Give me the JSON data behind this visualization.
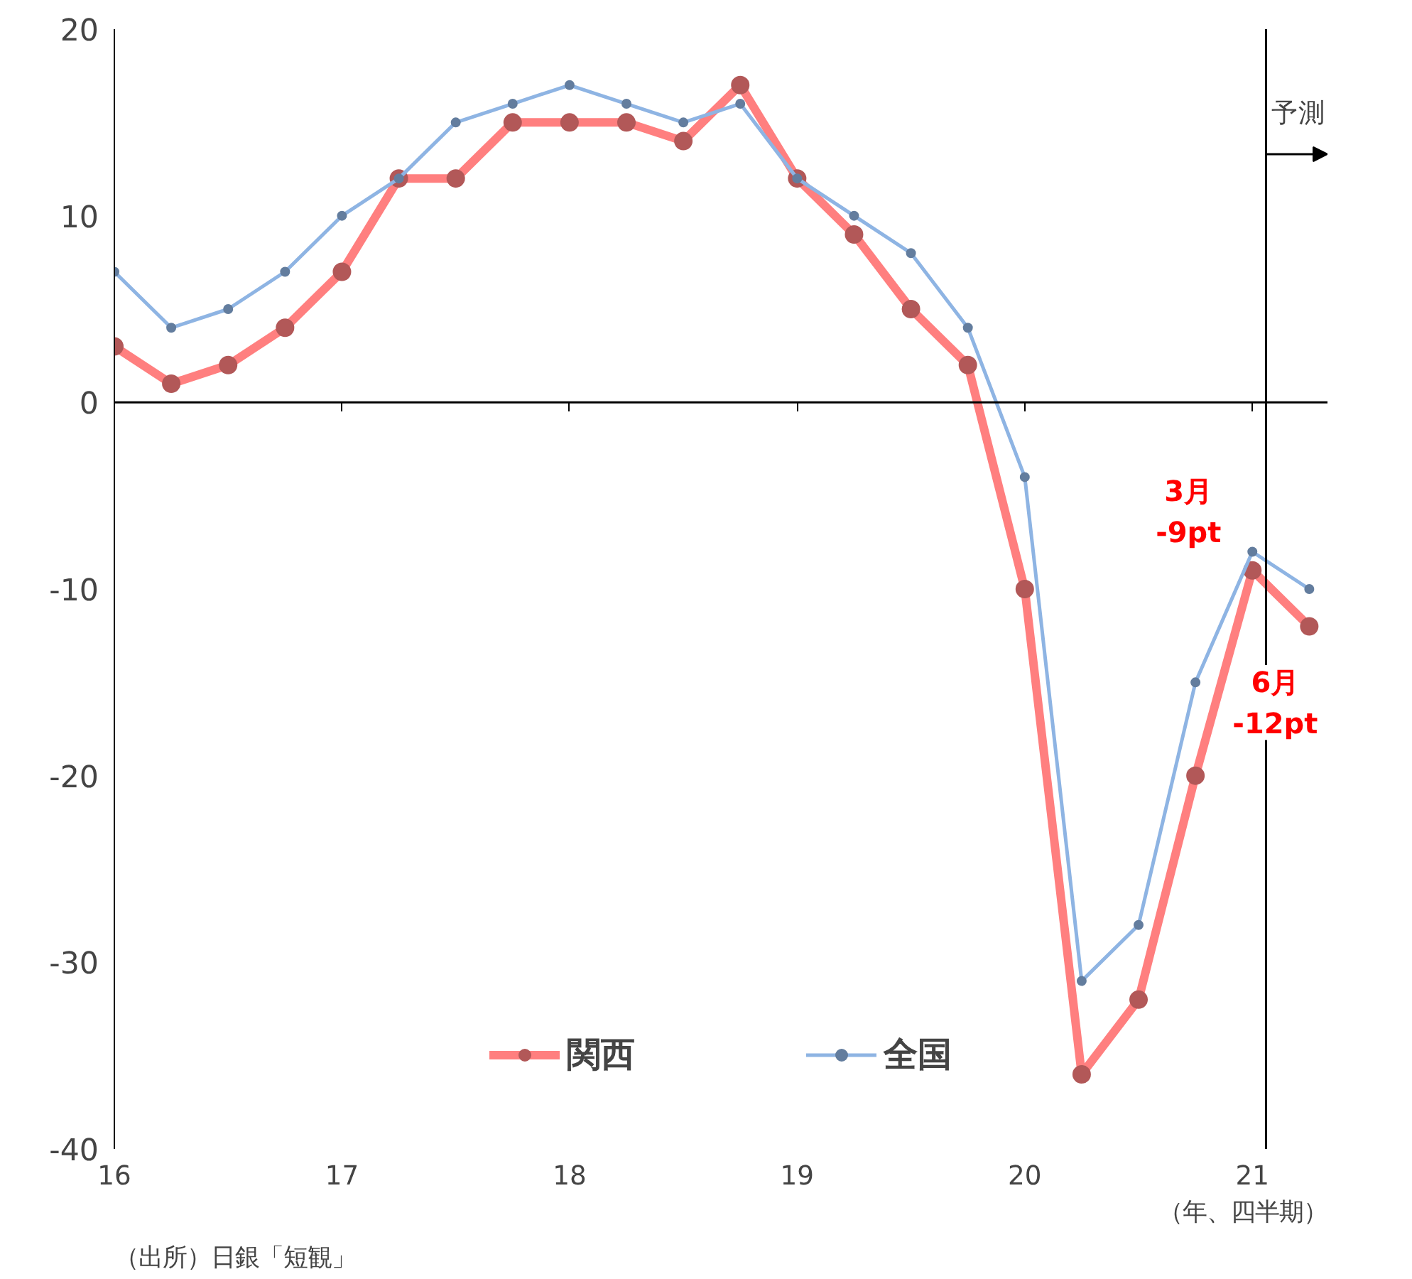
{
  "chart_data": {
    "type": "line",
    "xlabel": "（年、四半期）",
    "x": [
      2016,
      2016.25,
      2016.5,
      2016.75,
      2017,
      2017.25,
      2017.5,
      2017.75,
      2018,
      2018.25,
      2018.5,
      2018.75,
      2019,
      2019.25,
      2019.5,
      2019.75,
      2020,
      2020.25,
      2020.5,
      2020.75,
      2021,
      2021.25
    ],
    "series": [
      {
        "name": "関西",
        "color": "#ff7f7f",
        "values": [
          3,
          1,
          2,
          4,
          7,
          12,
          12,
          15,
          15,
          15,
          14,
          17,
          12,
          9,
          5,
          2,
          -10,
          -36,
          -32,
          -20,
          -9,
          -12
        ]
      },
      {
        "name": "全国",
        "color": "#8eb4e3",
        "values": [
          7,
          4,
          5,
          7,
          10,
          12,
          15,
          16,
          17,
          16,
          15,
          16,
          12,
          10,
          8,
          4,
          -4,
          -31,
          -28,
          -15,
          -8,
          -10
        ]
      }
    ],
    "xlim": [
      2016,
      2021.33
    ],
    "xticks": [
      {
        "value": 2016,
        "label": "16"
      },
      {
        "value": 2017,
        "label": "17"
      },
      {
        "value": 2018,
        "label": "18"
      },
      {
        "value": 2019,
        "label": "19"
      },
      {
        "value": 2020,
        "label": "20"
      },
      {
        "value": 2021,
        "label": "21"
      }
    ],
    "ylim": [
      -40,
      20
    ],
    "yticks": [
      -40,
      -30,
      -20,
      -10,
      0,
      10,
      20
    ],
    "ref_lines": [
      {
        "axis": "x",
        "value": 2021.06,
        "label": "予測",
        "color": "#000000"
      },
      {
        "axis": "y",
        "value": 0,
        "color": "#000000"
      }
    ],
    "annotations": [
      {
        "text": "3月\n-9pt",
        "x": 2021,
        "y": -9
      },
      {
        "text": "6月\n-12pt",
        "x": 2021.25,
        "y": -12
      },
      "（出所）日銀「短観」"
    ],
    "marker": "circle",
    "legend": "bottom"
  }
}
